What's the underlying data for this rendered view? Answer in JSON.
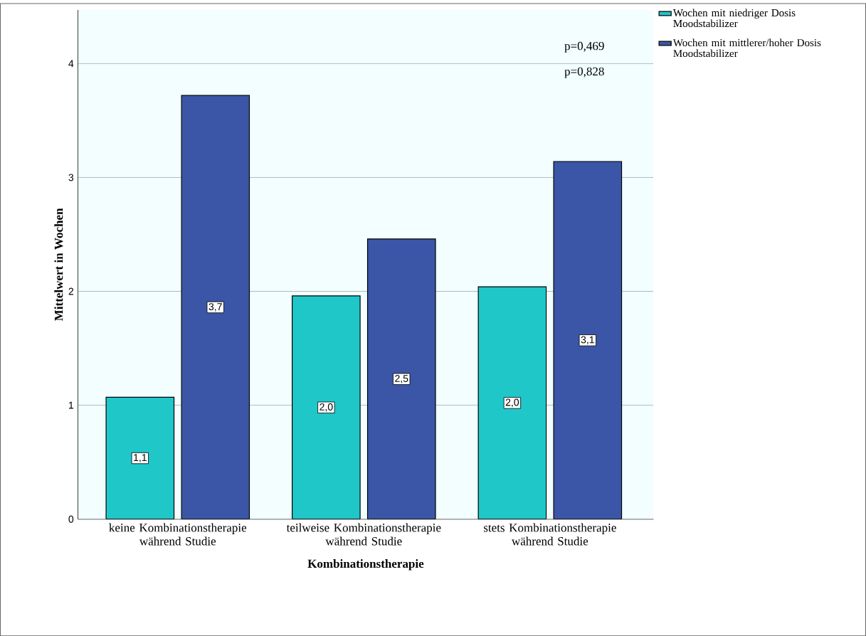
{
  "chart_data": {
    "type": "bar",
    "xlabel": "Kombinationstherapie",
    "ylabel": "Mittelwert in Wochen",
    "categories": [
      "keine Kombinationstherapie während Studie",
      "teilweise Kombinationstherapie während Studie",
      "stets Kombinationstherapie während Studie"
    ],
    "series": [
      {
        "name": "Wochen mit niedriger Dosis Moodstabilizer",
        "color": "#1fc7c9",
        "values": [
          1.07,
          1.96,
          2.04
        ],
        "value_labels": [
          "1,1",
          "2,0",
          "2,0"
        ]
      },
      {
        "name": "Wochen mit mittlerer/hoher Dosis Moodstabilizer",
        "color": "#3b56a6",
        "values": [
          3.72,
          2.46,
          3.14
        ],
        "value_labels": [
          "3,7",
          "2,5",
          "3,1"
        ]
      }
    ],
    "ylim": [
      0,
      4.47
    ],
    "yticks": [
      0,
      1,
      2,
      3,
      4
    ],
    "grid": "y",
    "legend": "top right",
    "annotations": [
      "p=0,469",
      "p=0,828"
    ]
  }
}
